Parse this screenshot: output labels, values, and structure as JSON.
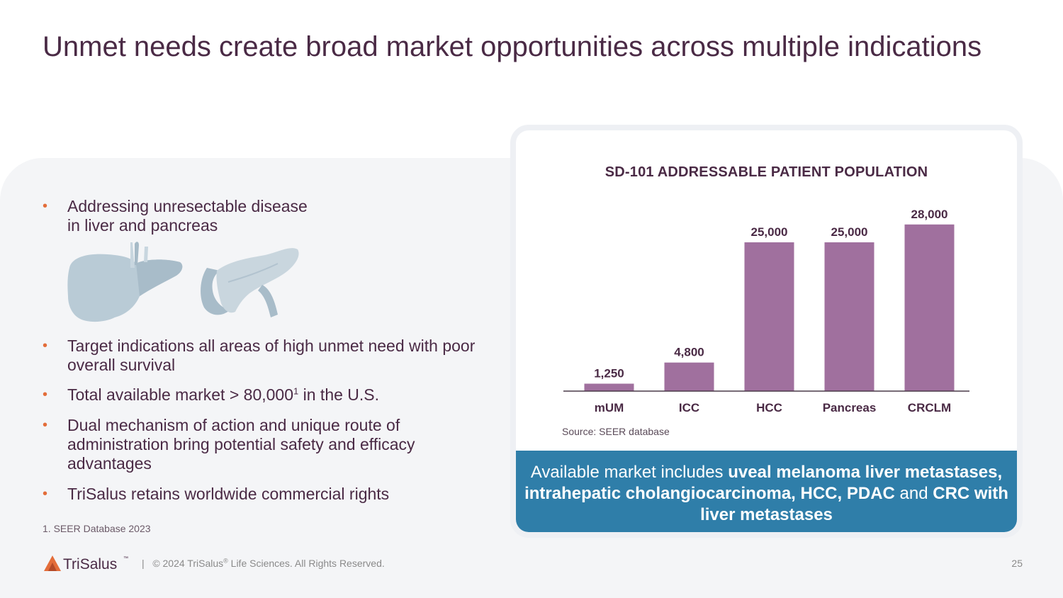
{
  "title": "Unmet needs create broad market opportunities across multiple indications",
  "bullets": [
    {
      "line1": "Addressing unresectable disease",
      "line2": "in liver and pancreas"
    },
    {
      "text": "Target indications all areas of high unmet need with poor overall survival"
    },
    {
      "pre": "Total available market > 80,000",
      "sup": "1",
      "post": " in the U.S."
    },
    {
      "text": "Dual mechanism of action and unique route of administration bring potential safety and efficacy advantages"
    },
    {
      "text": "TriSalus retains worldwide commercial rights"
    }
  ],
  "bullet_marker": "•",
  "footnote": "1. SEER Database 2023",
  "chart_data": {
    "type": "bar",
    "title": "SD-101 ADDRESSABLE PATIENT POPULATION",
    "categories": [
      "mUM",
      "ICC",
      "HCC",
      "Pancreas",
      "CRCLM"
    ],
    "values": [
      1250,
      4800,
      25000,
      25000,
      28000
    ],
    "value_labels": [
      "1,250",
      "4,800",
      "25,000",
      "25,000",
      "28,000"
    ],
    "xlabel": "",
    "ylabel": "",
    "ylim": [
      0,
      30000
    ],
    "bar_color": "#a0709e",
    "source": "Source: SEER database"
  },
  "banner": {
    "p1": "Available market includes ",
    "b1": "uveal melanoma liver metastases, intrahepatic cholangiocarcinoma, HCC, PDAC",
    "p2": " and ",
    "b2": "CRC with liver metastases"
  },
  "footer": {
    "logo": "TriSalus",
    "logo_tm": "™",
    "separator": "|",
    "copyright_pre": "© 2024 TriSalus",
    "copyright_reg": "®",
    "copyright_post": " Life Sciences. All Rights Reserved.",
    "page": "25"
  },
  "colors": {
    "title": "#4a2a45",
    "bullet": "#e36d3a",
    "bar": "#a0709e",
    "banner": "#2f7ea9",
    "organ": "#b9cbd6"
  }
}
